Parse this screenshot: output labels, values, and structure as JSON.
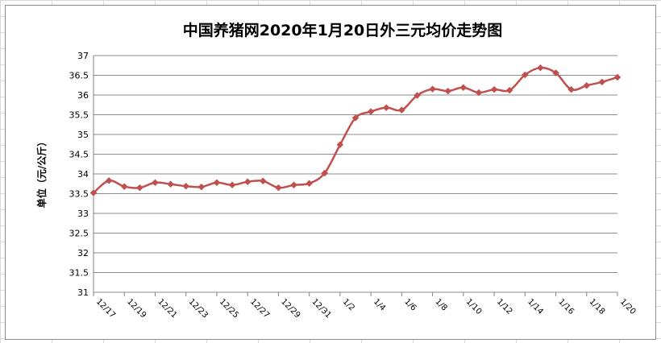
{
  "chart_data": {
    "type": "line",
    "title": "中国养猪网2020年1月20日外三元均价走势图",
    "ylabel": "单位（元/公斤）",
    "xlabel": "",
    "ylim": [
      31,
      37
    ],
    "ystep": 0.5,
    "grid": true,
    "legend": "none",
    "line_color": "#c0504d",
    "x_tick_labels": [
      "12/17",
      "12/19",
      "12/21",
      "12/23",
      "12/25",
      "12/27",
      "12/29",
      "12/31",
      "1/2",
      "1/4",
      "1/6",
      "1/8",
      "1/10",
      "1/12",
      "1/14",
      "1/16",
      "1/18",
      "1/20"
    ],
    "y_tick_labels": [
      "31",
      "31.5",
      "32",
      "32.5",
      "33",
      "33.5",
      "34",
      "34.5",
      "35",
      "35.5",
      "36",
      "36.5",
      "37"
    ],
    "x": [
      "12/17",
      "12/18",
      "12/19",
      "12/20",
      "12/21",
      "12/22",
      "12/23",
      "12/24",
      "12/25",
      "12/26",
      "12/27",
      "12/28",
      "12/29",
      "12/30",
      "12/31",
      "1/1",
      "1/2",
      "1/3",
      "1/4",
      "1/5",
      "1/6",
      "1/7",
      "1/8",
      "1/9",
      "1/10",
      "1/11",
      "1/12",
      "1/13",
      "1/14",
      "1/15",
      "1/16",
      "1/17",
      "1/18",
      "1/19",
      "1/20"
    ],
    "series": [
      {
        "name": "",
        "values": [
          33.52,
          33.83,
          33.68,
          33.65,
          33.78,
          33.74,
          33.69,
          33.67,
          33.78,
          33.72,
          33.8,
          33.82,
          33.65,
          33.72,
          33.76,
          34.02,
          34.74,
          35.42,
          35.58,
          35.68,
          35.62,
          35.99,
          36.15,
          36.1,
          36.19,
          36.06,
          36.14,
          36.12,
          36.51,
          36.69,
          36.56,
          36.14,
          36.24,
          36.33,
          36.45
        ]
      }
    ]
  }
}
